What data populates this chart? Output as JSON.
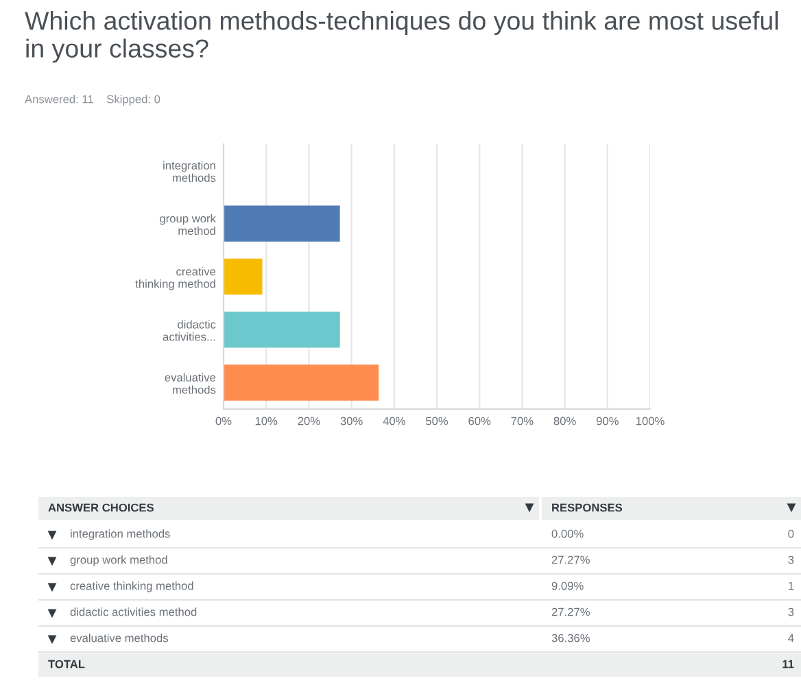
{
  "chart_data": [
    {
      "type": "bar",
      "orientation": "horizontal",
      "title": "Which activation methods-techniques do you think are most useful in your classes?",
      "subtitle": "Answered: 11    Skipped: 0",
      "categories": [
        "integration\nmethods",
        "group work\nmethod",
        "creative\nthinking method",
        "didactic\nactivities...",
        "evaluative\nmethods"
      ],
      "values": [
        0,
        27.27,
        9.09,
        27.27,
        36.36
      ],
      "colors": [
        null,
        "#4f7bb5",
        "#f7bc00",
        "#6cc8cc",
        "#ff8c4f"
      ],
      "xlim": [
        0,
        100
      ],
      "xticks": [
        {
          "value": 0,
          "label": "0%"
        },
        {
          "value": 10,
          "label": "10%"
        },
        {
          "value": 20,
          "label": "20%"
        },
        {
          "value": 30,
          "label": "30%"
        },
        {
          "value": 40,
          "label": "40%"
        },
        {
          "value": 50,
          "label": "50%"
        },
        {
          "value": 60,
          "label": "60%"
        },
        {
          "value": 70,
          "label": "70%"
        },
        {
          "value": 80,
          "label": "80%"
        },
        {
          "value": 90,
          "label": "90%"
        },
        {
          "value": 100,
          "label": "100%"
        }
      ],
      "grid": "x"
    },
    {
      "type": "other",
      "categories": [
        "integration methods",
        "group work method",
        "creative thinking method",
        "didactic activities method",
        "evaluative methods"
      ],
      "values": [
        0,
        27.27,
        9.09,
        27.27,
        36.36
      ],
      "value_labels": [
        "0.00%",
        "27.27%",
        "9.09%",
        "27.27%",
        "36.36%"
      ],
      "annotations": [
        "ANSWER CHOICES",
        "RESPONSES",
        "0",
        "3",
        "1",
        "3",
        "4",
        "TOTAL",
        "11"
      ]
    }
  ]
}
